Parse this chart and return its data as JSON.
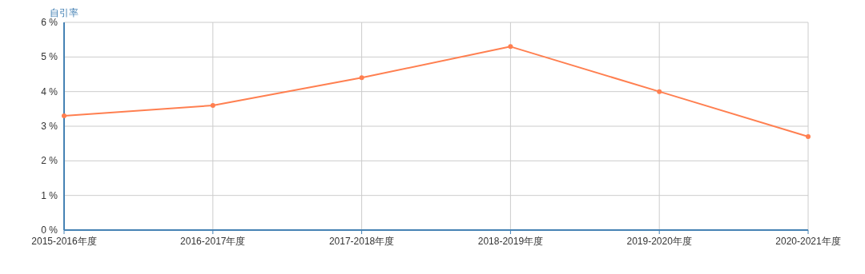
{
  "chart_data": {
    "type": "line",
    "ylabel": "自引率",
    "categories": [
      "2015-2016年度",
      "2016-2017年度",
      "2017-2018年度",
      "2018-2019年度",
      "2019-2020年度",
      "2020-2021年度"
    ],
    "series": [
      {
        "color": "#ff7f50",
        "values": [
          3.3,
          3.6,
          4.4,
          5.3,
          4.0,
          2.7
        ]
      }
    ],
    "ylim": [
      0,
      6
    ],
    "yticks": [
      {
        "value": 0,
        "label": "0 %"
      },
      {
        "value": 1,
        "label": "1 %"
      },
      {
        "value": 2,
        "label": "2 %"
      },
      {
        "value": 3,
        "label": "3 %"
      },
      {
        "value": 4,
        "label": "4 %"
      },
      {
        "value": 5,
        "label": "5 %"
      },
      {
        "value": 6,
        "label": "6 %"
      }
    ],
    "grid": true,
    "marker": "circle"
  }
}
